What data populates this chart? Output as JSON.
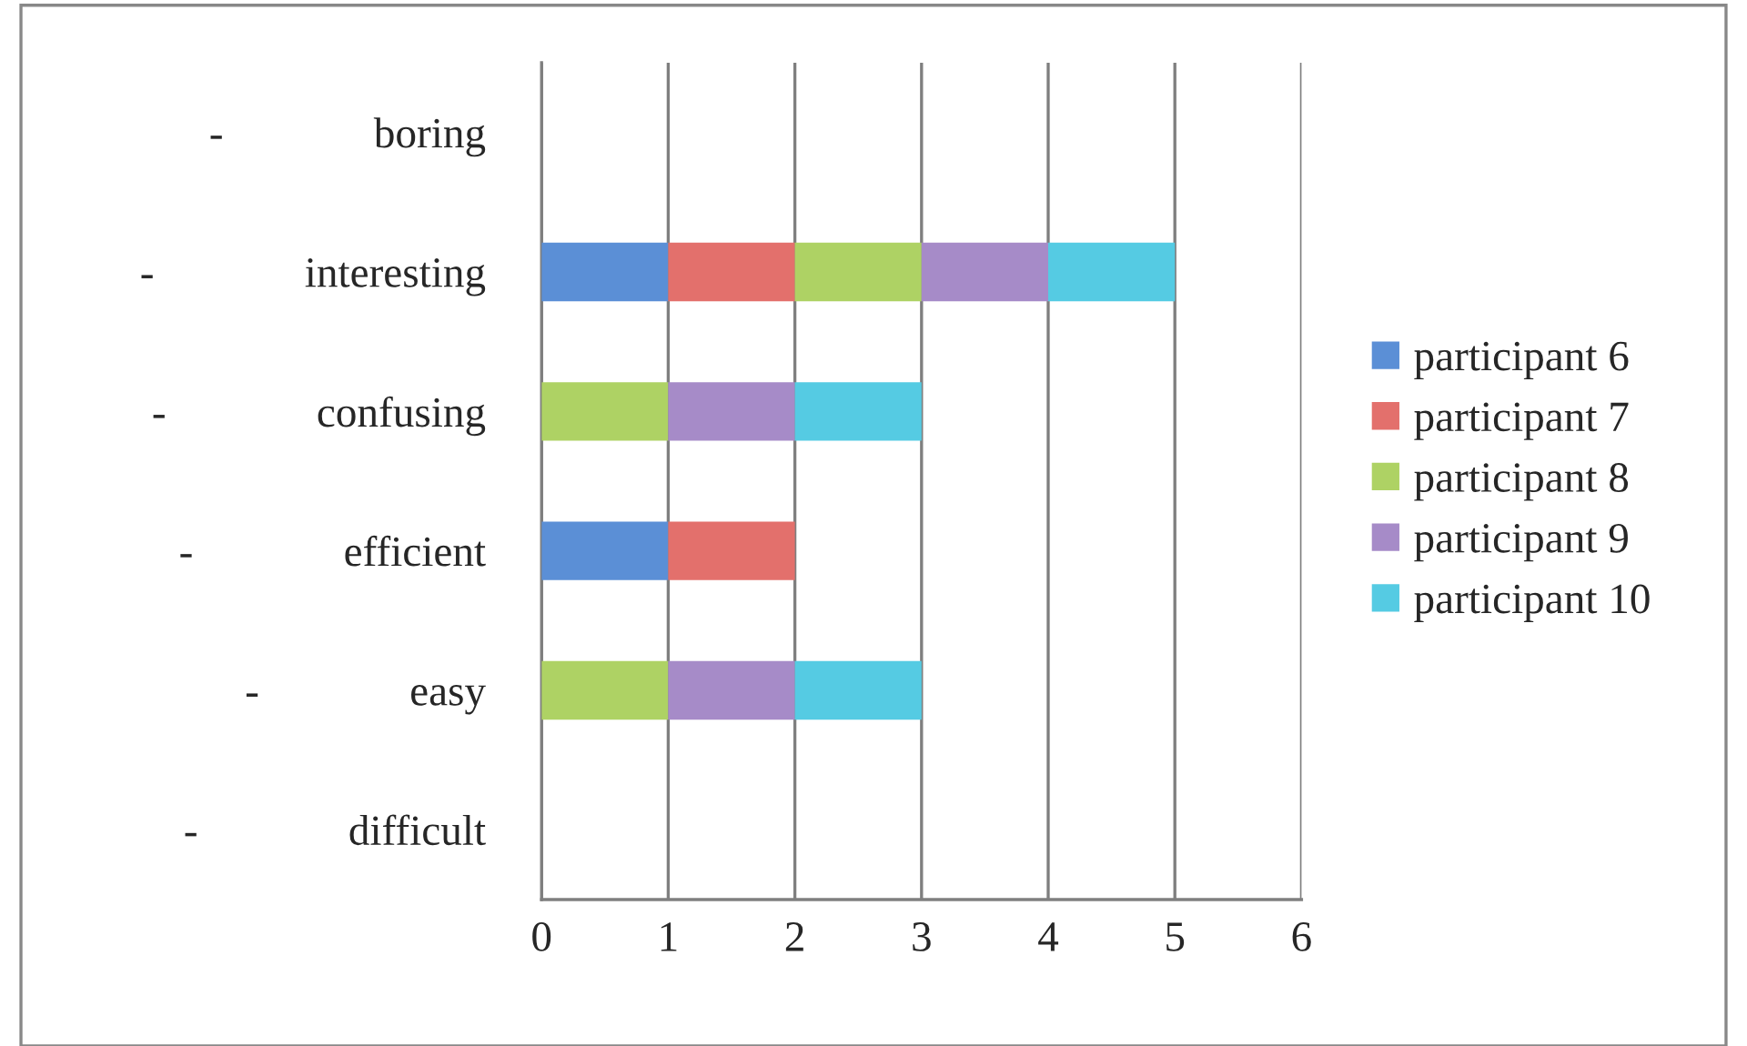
{
  "chart_data": {
    "type": "bar",
    "orientation": "horizontal",
    "stacked": true,
    "categories": [
      "-              boring",
      "-              interesting",
      "-              confusing",
      "-              efficient",
      "-              easy",
      "-              difficult"
    ],
    "series": [
      {
        "name": "participant 6",
        "color": "#5b8fd6",
        "values": [
          null,
          1,
          null,
          1,
          null,
          null
        ]
      },
      {
        "name": "participant 7",
        "color": "#e3706c",
        "values": [
          null,
          1,
          null,
          1,
          null,
          null
        ]
      },
      {
        "name": "participant 8",
        "color": "#aed264",
        "values": [
          null,
          1,
          1,
          null,
          1,
          null
        ]
      },
      {
        "name": "participant 9",
        "color": "#a68bc8",
        "values": [
          null,
          1,
          1,
          null,
          1,
          null
        ]
      },
      {
        "name": "participant 10",
        "color": "#55cbe3",
        "values": [
          null,
          1,
          1,
          null,
          1,
          null
        ]
      }
    ],
    "xlim": [
      0,
      6
    ],
    "xticks": [
      0,
      1,
      2,
      3,
      4,
      5,
      6
    ],
    "grid": "x",
    "legend": "right"
  }
}
